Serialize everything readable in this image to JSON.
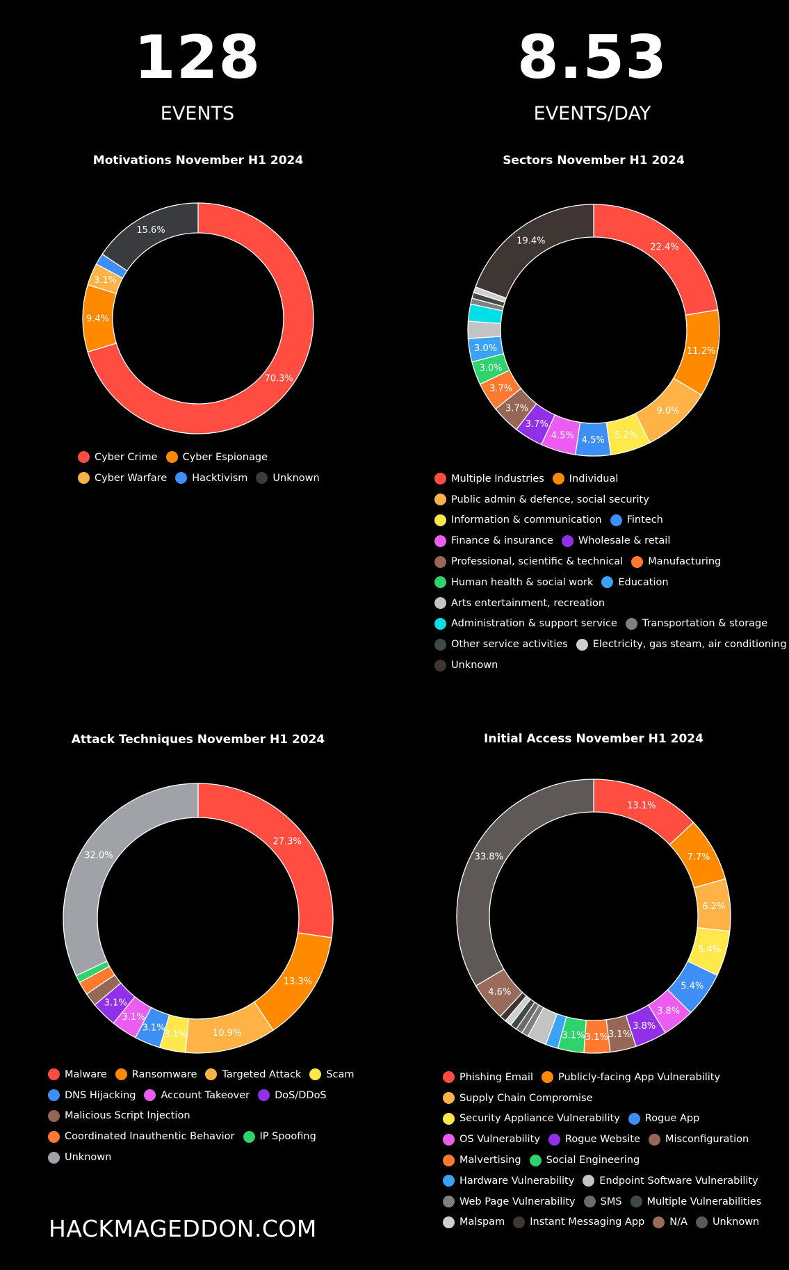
{
  "kpis": [
    {
      "value": "128",
      "label": "EVENTS"
    },
    {
      "value": "8.53",
      "label": "EVENTS/DAY"
    }
  ],
  "footer": "HACKMAGEDDON.COM",
  "chart_data": [
    {
      "type": "pie",
      "title": "Motivations November H1 2024",
      "legend_rows": [
        [
          0,
          1
        ],
        [
          2,
          3,
          4
        ]
      ],
      "slices": [
        {
          "label": "Cyber Crime",
          "value": 70.3,
          "color": "#ff4d42",
          "show_label": true
        },
        {
          "label": "Cyber Espionage",
          "value": 9.4,
          "color": "#ff8a00",
          "show_label": true
        },
        {
          "label": "Cyber Warfare",
          "value": 3.1,
          "color": "#ffb347",
          "show_label": true
        },
        {
          "label": "Hacktivism",
          "value": 1.6,
          "color": "#3d8ef5",
          "show_label": false
        },
        {
          "label": "Unknown",
          "value": 15.6,
          "color": "#3a3b3f",
          "show_label": true
        }
      ]
    },
    {
      "type": "pie",
      "title": "Sectors November H1 2024",
      "legend_rows": [
        [
          0,
          1
        ],
        [
          2
        ],
        [
          3,
          4
        ],
        [
          5,
          6
        ],
        [
          7,
          8
        ],
        [
          9,
          10
        ],
        [
          11
        ],
        [
          12,
          13
        ],
        [
          14,
          15
        ],
        [
          16
        ]
      ],
      "slices": [
        {
          "label": "Multiple Industries",
          "value": 22.4,
          "color": "#ff4d42",
          "show_label": true
        },
        {
          "label": "Individual",
          "value": 11.2,
          "color": "#ff8a00",
          "show_label": true
        },
        {
          "label": "Public admin & defence, social security",
          "value": 9.0,
          "color": "#ffb347",
          "show_label": true
        },
        {
          "label": "Information & communication",
          "value": 5.2,
          "color": "#ffe84a",
          "show_label": true
        },
        {
          "label": "Fintech",
          "value": 4.5,
          "color": "#3d8ef5",
          "show_label": true
        },
        {
          "label": "Finance & insurance",
          "value": 4.5,
          "color": "#ec5cf0",
          "show_label": true
        },
        {
          "label": "Wholesale & retail",
          "value": 3.7,
          "color": "#9130e8",
          "show_label": true
        },
        {
          "label": "Professional, scientific & technical",
          "value": 3.7,
          "color": "#966656",
          "show_label": true
        },
        {
          "label": "Manufacturing",
          "value": 3.7,
          "color": "#ff7a30",
          "show_label": true
        },
        {
          "label": "Human health & social work",
          "value": 3.0,
          "color": "#2fd36b",
          "show_label": true
        },
        {
          "label": "Education",
          "value": 3.0,
          "color": "#3aa3f5",
          "show_label": true
        },
        {
          "label": "Arts entertainment, recreation",
          "value": 2.2,
          "color": "#c3c3c3",
          "show_label": false
        },
        {
          "label": "Administration & support service",
          "value": 2.2,
          "color": "#00e0e6",
          "show_label": false
        },
        {
          "label": "Transportation & storage",
          "value": 0.75,
          "color": "#808080",
          "show_label": false
        },
        {
          "label": "Other service activities",
          "value": 0.75,
          "color": "#3f4a47",
          "show_label": false
        },
        {
          "label": "Electricity, gas steam, air conditioning",
          "value": 0.75,
          "color": "#cfcfcf",
          "show_label": false
        },
        {
          "label": "Unknown",
          "value": 19.4,
          "color": "#3f3633",
          "show_label": true
        }
      ]
    },
    {
      "type": "pie",
      "title": "Attack Techniques November H1 2024",
      "legend_rows": [
        [
          0,
          1,
          2,
          3
        ],
        [
          4,
          5,
          6
        ],
        [
          7
        ],
        [
          8,
          9
        ],
        [
          10
        ]
      ],
      "slices": [
        {
          "label": "Malware",
          "value": 27.3,
          "color": "#ff4d42",
          "show_label": true
        },
        {
          "label": "Ransomware",
          "value": 13.3,
          "color": "#ff8a00",
          "show_label": true
        },
        {
          "label": "Targeted Attack",
          "value": 10.9,
          "color": "#ffb347",
          "show_label": true
        },
        {
          "label": "Scam",
          "value": 3.1,
          "color": "#ffe84a",
          "show_label": true
        },
        {
          "label": "DNS Hijacking",
          "value": 3.1,
          "color": "#3d8ef5",
          "show_label": true
        },
        {
          "label": "Account Takeover",
          "value": 3.1,
          "color": "#ec5cf0",
          "show_label": true
        },
        {
          "label": "DoS/DDoS",
          "value": 3.1,
          "color": "#9130e8",
          "show_label": true
        },
        {
          "label": "Malicious Script Injection",
          "value": 1.6,
          "color": "#966656",
          "show_label": false
        },
        {
          "label": "Coordinated Inauthentic Behavior",
          "value": 1.6,
          "color": "#ff7a30",
          "show_label": false
        },
        {
          "label": "IP Spoofing",
          "value": 0.9,
          "color": "#2fd36b",
          "show_label": false
        },
        {
          "label": "Unknown",
          "value": 32.0,
          "color": "#9fa3a8",
          "show_label": true
        }
      ]
    },
    {
      "type": "pie",
      "title": "Initial Access November H1 2024",
      "legend_rows": [
        [
          0,
          1
        ],
        [
          2
        ],
        [
          3,
          4
        ],
        [
          5,
          6,
          7
        ],
        [
          8,
          9
        ],
        [
          10,
          11
        ],
        [
          12,
          13,
          14
        ],
        [
          15,
          16,
          17,
          18
        ]
      ],
      "slices": [
        {
          "label": "Phishing Email",
          "value": 13.1,
          "color": "#ff4d42",
          "show_label": true
        },
        {
          "label": "Publicly-facing App Vulnerability",
          "value": 7.7,
          "color": "#ff8a00",
          "show_label": true
        },
        {
          "label": "Supply Chain Compromise",
          "value": 6.2,
          "color": "#ffb347",
          "show_label": true
        },
        {
          "label": "Security Appliance Vulnerability",
          "value": 5.4,
          "color": "#ffe84a",
          "show_label": true
        },
        {
          "label": "Rogue App",
          "value": 5.4,
          "color": "#3d8ef5",
          "show_label": true
        },
        {
          "label": "OS Vulnerability",
          "value": 3.8,
          "color": "#ec5cf0",
          "show_label": true
        },
        {
          "label": "Rogue Website",
          "value": 3.8,
          "color": "#9130e8",
          "show_label": true
        },
        {
          "label": "Misconfiguration",
          "value": 3.1,
          "color": "#966656",
          "show_label": true
        },
        {
          "label": "Malvertising",
          "value": 3.1,
          "color": "#ff7a30",
          "show_label": true
        },
        {
          "label": "Social Engineering",
          "value": 3.1,
          "color": "#2fd36b",
          "show_label": true
        },
        {
          "label": "Hardware Vulnerability",
          "value": 1.5,
          "color": "#3aa3f5",
          "show_label": false
        },
        {
          "label": "Endpoint Software Vulnerability",
          "value": 2.3,
          "color": "#c3c3c3",
          "show_label": false
        },
        {
          "label": "Web Page Vulnerability",
          "value": 0.8,
          "color": "#808080",
          "show_label": false
        },
        {
          "label": "SMS",
          "value": 0.8,
          "color": "#6b6b6b",
          "show_label": false
        },
        {
          "label": "Multiple Vulnerabilities",
          "value": 0.8,
          "color": "#3f4a47",
          "show_label": false
        },
        {
          "label": "Malspam",
          "value": 0.8,
          "color": "#cfcfcf",
          "show_label": false
        },
        {
          "label": "Instant Messaging App",
          "value": 0.8,
          "color": "#3f3633",
          "show_label": false
        },
        {
          "label": "N/A",
          "value": 4.6,
          "color": "#9a6a5a",
          "show_label": true
        },
        {
          "label": "Unknown",
          "value": 33.8,
          "color": "#5e5956",
          "show_label": true
        }
      ]
    }
  ]
}
